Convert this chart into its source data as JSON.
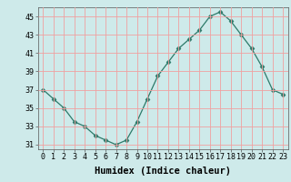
{
  "x": [
    0,
    1,
    2,
    3,
    4,
    5,
    6,
    7,
    8,
    9,
    10,
    11,
    12,
    13,
    14,
    15,
    16,
    17,
    18,
    19,
    20,
    21,
    22,
    23
  ],
  "y": [
    37.0,
    36.0,
    35.0,
    33.5,
    33.0,
    32.0,
    31.5,
    31.0,
    31.5,
    33.5,
    36.0,
    38.5,
    40.0,
    41.5,
    42.5,
    43.5,
    45.0,
    45.5,
    44.5,
    43.0,
    41.5,
    39.5,
    37.0,
    36.5
  ],
  "xlabel": "Humidex (Indice chaleur)",
  "ylim": [
    30.5,
    46.0
  ],
  "yticks": [
    31,
    33,
    35,
    37,
    39,
    41,
    43,
    45
  ],
  "xticks": [
    0,
    1,
    2,
    3,
    4,
    5,
    6,
    7,
    8,
    9,
    10,
    11,
    12,
    13,
    14,
    15,
    16,
    17,
    18,
    19,
    20,
    21,
    22,
    23
  ],
  "line_color": "#2d7a6a",
  "marker": "D",
  "marker_size": 2.5,
  "background_color": "#ceeaea",
  "grid_color": "#f0a0a0",
  "tick_fontsize": 6.0,
  "xlabel_fontsize": 7.5
}
